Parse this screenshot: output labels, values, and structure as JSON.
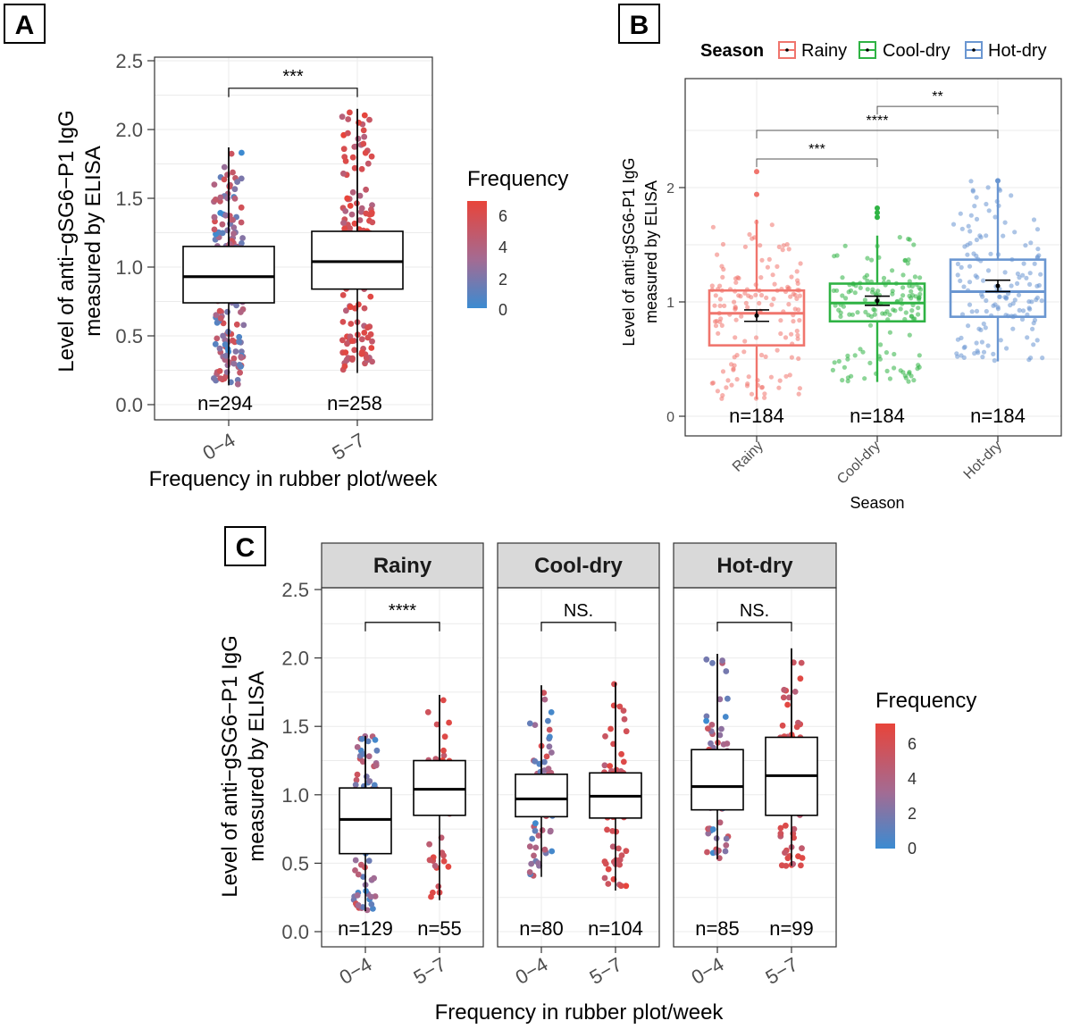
{
  "panels": {
    "A": {
      "letter": "A"
    },
    "B": {
      "letter": "B"
    },
    "C": {
      "letter": "C"
    }
  },
  "chart_data": [
    {
      "id": "A",
      "type": "box",
      "ylabel_line1": "Level of anti−gSG6−P1 IgG",
      "ylabel_line2": "measured by ELISA",
      "xlabel": "Frequency in rubber plot/week",
      "ylim": [
        0,
        2.5
      ],
      "yticks": [
        "0.0",
        "0.5",
        "1.0",
        "1.5",
        "2.0",
        "2.5"
      ],
      "categories": [
        "0−4",
        "5−7"
      ],
      "n_labels": [
        "n=294",
        "n=258"
      ],
      "boxes": [
        {
          "min": 0.14,
          "q1": 0.74,
          "median": 0.93,
          "q3": 1.15,
          "max": 1.87
        },
        {
          "min": 0.23,
          "q1": 0.84,
          "median": 1.04,
          "q3": 1.26,
          "max": 2.15
        }
      ],
      "significance": [
        {
          "from": 0,
          "to": 1,
          "y": 2.3,
          "label": "***"
        }
      ],
      "legend": {
        "title": "Frequency",
        "ticks": [
          "0",
          "2",
          "4",
          "6"
        ],
        "low_color": "#3b8bd1",
        "high_color": "#e8443a"
      }
    },
    {
      "id": "B",
      "type": "box",
      "ylabel_line1": "Level of anti-gSG6-P1 IgG",
      "ylabel_line2": "measured by ELISA",
      "xlabel": "Season",
      "ylim": [
        -0.1,
        2.9
      ],
      "yticks": [
        "0",
        "1",
        "2"
      ],
      "categories": [
        "Rainy",
        "Cool-dry",
        "Hot-dry"
      ],
      "n_labels": [
        "n=184",
        "n=184",
        "n=184"
      ],
      "boxes": [
        {
          "min": 0.15,
          "q1": 0.62,
          "median": 0.9,
          "q3": 1.1,
          "max": 1.72,
          "mean": 0.88,
          "ci_low": 0.83,
          "ci_high": 0.93,
          "color": "#f0756d"
        },
        {
          "min": 0.3,
          "q1": 0.83,
          "median": 0.99,
          "q3": 1.16,
          "max": 1.58,
          "mean": 1.01,
          "ci_low": 0.97,
          "ci_high": 1.05,
          "color": "#2fb344"
        },
        {
          "min": 0.48,
          "q1": 0.87,
          "median": 1.09,
          "q3": 1.37,
          "max": 2.06,
          "mean": 1.14,
          "ci_low": 1.09,
          "ci_high": 1.19,
          "color": "#6a96d1"
        }
      ],
      "significance": [
        {
          "from": 0,
          "to": 1,
          "y": 2.25,
          "label": "***"
        },
        {
          "from": 0,
          "to": 2,
          "y": 2.5,
          "label": "****"
        },
        {
          "from": 1,
          "to": 2,
          "y": 2.71,
          "label": "**"
        }
      ],
      "legend": {
        "title": "Season",
        "items": [
          "Rainy",
          "Cool-dry",
          "Hot-dry"
        ]
      }
    },
    {
      "id": "C",
      "type": "box",
      "ylabel_line1": "Level of anti−gSG6−P1 IgG",
      "ylabel_line2": "measured by ELISA",
      "xlabel": "Frequency in rubber plot/week",
      "ylim": [
        0,
        2.5
      ],
      "yticks": [
        "0.0",
        "0.5",
        "1.0",
        "1.5",
        "2.0",
        "2.5"
      ],
      "categories": [
        "0−4",
        "5−7"
      ],
      "facets": [
        {
          "title": "Rainy",
          "n_labels": [
            "n=129",
            "n=55"
          ],
          "boxes": [
            {
              "min": 0.15,
              "q1": 0.57,
              "median": 0.82,
              "q3": 1.05,
              "max": 1.43
            },
            {
              "min": 0.23,
              "q1": 0.85,
              "median": 1.04,
              "q3": 1.25,
              "max": 1.73
            }
          ],
          "significance": {
            "y": 2.26,
            "label": "****"
          }
        },
        {
          "title": "Cool-dry",
          "n_labels": [
            "n=80",
            "n=104"
          ],
          "boxes": [
            {
              "min": 0.4,
              "q1": 0.84,
              "median": 0.97,
              "q3": 1.15,
              "max": 1.8
            },
            {
              "min": 0.3,
              "q1": 0.83,
              "median": 0.99,
              "q3": 1.16,
              "max": 1.82
            }
          ],
          "significance": {
            "y": 2.26,
            "label": "NS."
          }
        },
        {
          "title": "Hot-dry",
          "n_labels": [
            "n=85",
            "n=99"
          ],
          "boxes": [
            {
              "min": 0.53,
              "q1": 0.89,
              "median": 1.06,
              "q3": 1.33,
              "max": 2.03
            },
            {
              "min": 0.48,
              "q1": 0.85,
              "median": 1.14,
              "q3": 1.42,
              "max": 2.07
            }
          ],
          "significance": {
            "y": 2.26,
            "label": "NS."
          }
        }
      ],
      "legend": {
        "title": "Frequency",
        "ticks": [
          "0",
          "2",
          "4",
          "6"
        ],
        "low_color": "#3b8bd1",
        "high_color": "#e8443a"
      }
    }
  ]
}
